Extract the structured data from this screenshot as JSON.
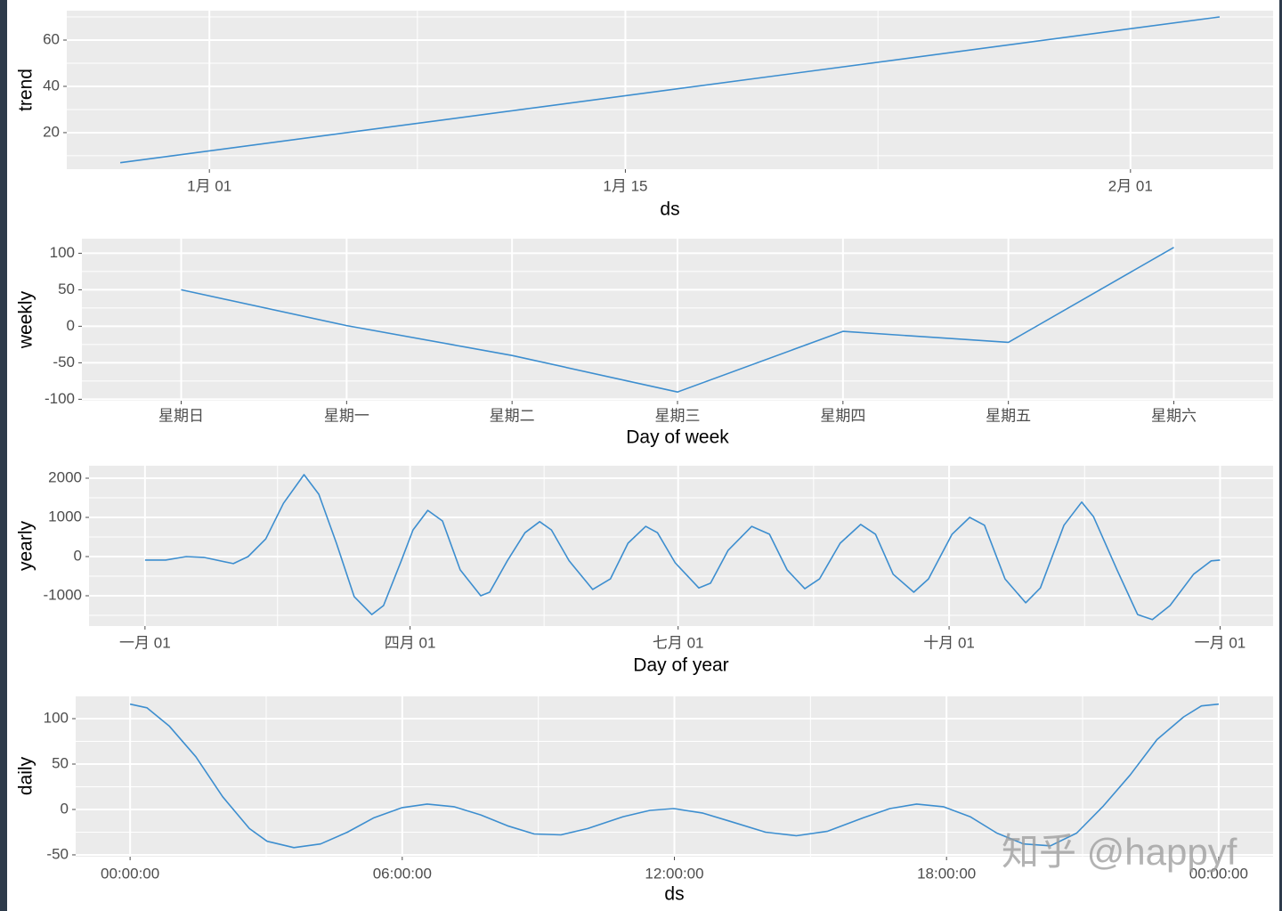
{
  "chart_data": [
    {
      "type": "line",
      "x_label": "ds",
      "y_label": "trend",
      "color": "#3d8ecf",
      "grid": true,
      "x": [
        -2,
        35
      ],
      "values": [
        7,
        70
      ],
      "xlim": [
        -3.8,
        36.8
      ],
      "ylim": [
        4.2,
        72.7
      ],
      "xticks": [
        {
          "value": 1,
          "label": "1月 01"
        },
        {
          "value": 15,
          "label": "1月 15"
        },
        {
          "value": 32,
          "label": "2月 01"
        }
      ],
      "yticks": [
        20,
        40,
        60
      ]
    },
    {
      "type": "line",
      "x_label": "Day of week",
      "y_label": "weekly",
      "color": "#3d8ecf",
      "grid": true,
      "categories": [
        "星期日",
        "星期一",
        "星期二",
        "星期三",
        "星期四",
        "星期五",
        "星期六"
      ],
      "values": [
        50,
        1,
        -40,
        -90,
        -7,
        -22,
        108
      ],
      "ylim": [
        -102,
        120
      ],
      "yticks": [
        -100,
        -50,
        0,
        50,
        100
      ]
    },
    {
      "type": "line",
      "x_label": "Day of year",
      "y_label": "yearly",
      "color": "#3d8ecf",
      "grid": true,
      "x": [
        1,
        8,
        15,
        21,
        31,
        36,
        42,
        48,
        55,
        60,
        66,
        72,
        78,
        82,
        88,
        92,
        97,
        102,
        108,
        115,
        118,
        124,
        130,
        135,
        139,
        145,
        153,
        159,
        165,
        171,
        175,
        181,
        189,
        193,
        199,
        207,
        213,
        219,
        225,
        230,
        237,
        244,
        249,
        255,
        262,
        267,
        275,
        281,
        286,
        293,
        300,
        305,
        313,
        319,
        323,
        331,
        338,
        343,
        349,
        357,
        363,
        366
      ],
      "values": [
        -90,
        -90,
        0,
        -20,
        -180,
        0,
        450,
        1360,
        2090,
        1590,
        340,
        -1020,
        -1480,
        -1250,
        -110,
        680,
        1180,
        910,
        -340,
        -1000,
        -910,
        -110,
        610,
        890,
        680,
        -110,
        -840,
        -570,
        340,
        770,
        610,
        -160,
        -800,
        -680,
        160,
        770,
        570,
        -340,
        -820,
        -570,
        340,
        820,
        570,
        -450,
        -910,
        -570,
        570,
        1000,
        800,
        -570,
        -1180,
        -800,
        800,
        1390,
        1020,
        -340,
        -1480,
        -1610,
        -1250,
        -450,
        -110,
        -90
      ],
      "xlim": [
        -18,
        384
      ],
      "ylim": [
        -1773,
        2318
      ],
      "xticks": [
        {
          "value": 1,
          "label": "一月 01"
        },
        {
          "value": 91,
          "label": "四月 01"
        },
        {
          "value": 182,
          "label": "七月 01"
        },
        {
          "value": 274,
          "label": "十月 01"
        },
        {
          "value": 366,
          "label": "一月 01"
        }
      ],
      "yticks": [
        -1000,
        0,
        1000,
        2000
      ]
    },
    {
      "type": "line",
      "x_label": "ds",
      "y_label": "daily",
      "color": "#3d8ecf",
      "grid": true,
      "x": [
        0,
        0.37,
        0.86,
        1.45,
        2.04,
        2.63,
        3.02,
        3.61,
        4.2,
        4.79,
        5.38,
        6,
        6.55,
        7.14,
        7.73,
        8.32,
        8.91,
        9.5,
        10.09,
        10.87,
        11.46,
        11.99,
        12.63,
        13.22,
        14.01,
        14.69,
        15.38,
        16.17,
        16.75,
        17.34,
        17.93,
        18.52,
        19.11,
        19.7,
        20.29,
        20.87,
        21.46,
        22.05,
        22.64,
        23.23,
        23.62,
        24
      ],
      "values": [
        116,
        112,
        92,
        58,
        14,
        -21,
        -35,
        -42,
        -38,
        -25,
        -9,
        2,
        6,
        3,
        -6,
        -18,
        -27,
        -28,
        -21,
        -8,
        -1,
        1,
        -4,
        -13,
        -25,
        -29,
        -24,
        -9,
        1,
        6,
        3,
        -8,
        -26,
        -38,
        -40,
        -26,
        4,
        38,
        77,
        102,
        114,
        116
      ],
      "xlim": [
        -1.2,
        25.2
      ],
      "ylim": [
        -52,
        125.5
      ],
      "xticks": [
        {
          "value": 0,
          "label": "00:00:00"
        },
        {
          "value": 6,
          "label": "06:00:00"
        },
        {
          "value": 12,
          "label": "12:00:00"
        },
        {
          "value": 18,
          "label": "18:00:00"
        },
        {
          "value": 24,
          "label": "00:00:00"
        }
      ],
      "yticks": [
        -50,
        0,
        50,
        100
      ]
    }
  ],
  "watermark": "知乎 @happyf"
}
